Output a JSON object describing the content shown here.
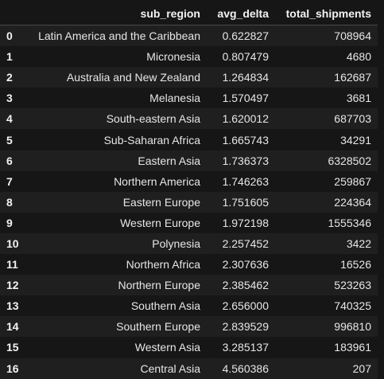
{
  "table": {
    "index_header": "",
    "columns": [
      "sub_region",
      "avg_delta",
      "total_shipments"
    ],
    "rows": [
      {
        "index": "0",
        "sub_region": "Latin America and the Caribbean",
        "avg_delta": "0.622827",
        "total_shipments": "708964"
      },
      {
        "index": "1",
        "sub_region": "Micronesia",
        "avg_delta": "0.807479",
        "total_shipments": "4680"
      },
      {
        "index": "2",
        "sub_region": "Australia and New Zealand",
        "avg_delta": "1.264834",
        "total_shipments": "162687"
      },
      {
        "index": "3",
        "sub_region": "Melanesia",
        "avg_delta": "1.570497",
        "total_shipments": "3681"
      },
      {
        "index": "4",
        "sub_region": "South-eastern Asia",
        "avg_delta": "1.620012",
        "total_shipments": "687703"
      },
      {
        "index": "5",
        "sub_region": "Sub-Saharan Africa",
        "avg_delta": "1.665743",
        "total_shipments": "34291"
      },
      {
        "index": "6",
        "sub_region": "Eastern Asia",
        "avg_delta": "1.736373",
        "total_shipments": "6328502"
      },
      {
        "index": "7",
        "sub_region": "Northern America",
        "avg_delta": "1.746263",
        "total_shipments": "259867"
      },
      {
        "index": "8",
        "sub_region": "Eastern Europe",
        "avg_delta": "1.751605",
        "total_shipments": "224364"
      },
      {
        "index": "9",
        "sub_region": "Western Europe",
        "avg_delta": "1.972198",
        "total_shipments": "1555346"
      },
      {
        "index": "10",
        "sub_region": "Polynesia",
        "avg_delta": "2.257452",
        "total_shipments": "3422"
      },
      {
        "index": "11",
        "sub_region": "Northern Africa",
        "avg_delta": "2.307636",
        "total_shipments": "16526"
      },
      {
        "index": "12",
        "sub_region": "Northern Europe",
        "avg_delta": "2.385462",
        "total_shipments": "523263"
      },
      {
        "index": "13",
        "sub_region": "Southern Asia",
        "avg_delta": "2.656000",
        "total_shipments": "740325"
      },
      {
        "index": "14",
        "sub_region": "Southern Europe",
        "avg_delta": "2.839529",
        "total_shipments": "996810"
      },
      {
        "index": "15",
        "sub_region": "Western Asia",
        "avg_delta": "3.285137",
        "total_shipments": "183961"
      },
      {
        "index": "16",
        "sub_region": "Central Asia",
        "avg_delta": "4.560386",
        "total_shipments": "207"
      }
    ]
  },
  "colors": {
    "background": "#161616",
    "row_stripe": "#1f1f1f",
    "text": "#e6e6e6",
    "header_rule": "#4a4a4a"
  }
}
